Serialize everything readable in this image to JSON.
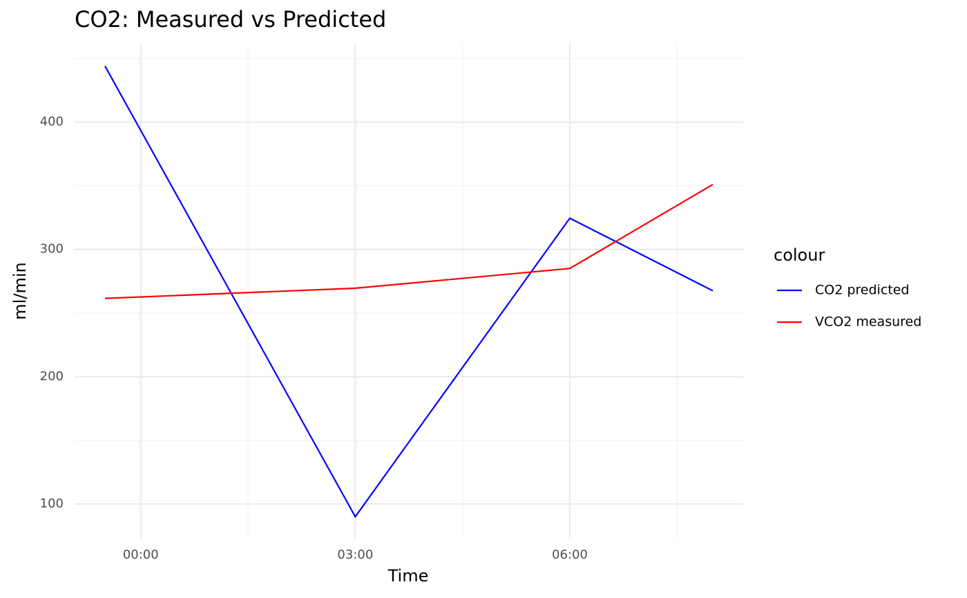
{
  "chart_data": {
    "type": "line",
    "title": "CO2: Measured vs Predicted",
    "x_label": "Time",
    "y_label": "ml/min",
    "x": [
      -0.5,
      3,
      6,
      8
    ],
    "series": [
      {
        "name": "CO2 predicted",
        "color": "#0000ff",
        "values": [
          444,
          90,
          324.5,
          267.5
        ]
      },
      {
        "name": "VCO2 measured",
        "color": "#ff0000",
        "values": [
          261.5,
          269.5,
          285,
          351
        ]
      }
    ],
    "xlim": [
      -0.925,
      8.425
    ],
    "xticks": [
      {
        "value": 0,
        "label": "00:00"
      },
      {
        "value": 3,
        "label": "03:00"
      },
      {
        "value": 6,
        "label": "06:00"
      }
    ],
    "ylim": [
      72.3,
      461.7
    ],
    "yticks": [
      100,
      200,
      300,
      400
    ],
    "grid": true,
    "legend_title": "colour",
    "legend_position": "right"
  }
}
